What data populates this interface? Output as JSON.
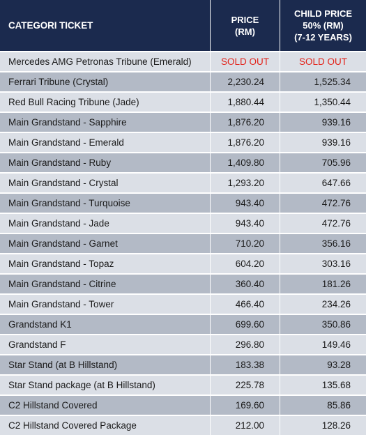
{
  "header": {
    "category": "CATEGORI TICKET",
    "price": "PRICE\n(RM)",
    "child_price": "CHILD PRICE\n50% (RM)\n(7-12 YEARS)"
  },
  "rows": [
    {
      "name": "Mercedes AMG Petronas Tribune (Emerald)",
      "price": "SOLD OUT",
      "child": "SOLD OUT",
      "sold_out": true
    },
    {
      "name": "Ferrari Tribune (Crystal)",
      "price": "2,230.24",
      "child": "1,525.34"
    },
    {
      "name": "Red Bull Racing Tribune (Jade)",
      "price": "1,880.44",
      "child": "1,350.44"
    },
    {
      "name": "Main Grandstand - Sapphire",
      "price": "1,876.20",
      "child": "939.16"
    },
    {
      "name": "Main Grandstand - Emerald",
      "price": "1,876.20",
      "child": "939.16"
    },
    {
      "name": "Main Grandstand - Ruby",
      "price": "1,409.80",
      "child": "705.96"
    },
    {
      "name": "Main Grandstand - Crystal",
      "price": "1,293.20",
      "child": "647.66"
    },
    {
      "name": "Main Grandstand - Turquoise",
      "price": "943.40",
      "child": "472.76"
    },
    {
      "name": "Main Grandstand - Jade",
      "price": "943.40",
      "child": "472.76"
    },
    {
      "name": "Main Grandstand - Garnet",
      "price": "710.20",
      "child": "356.16"
    },
    {
      "name": "Main Grandstand - Topaz",
      "price": "604.20",
      "child": "303.16"
    },
    {
      "name": "Main Grandstand - Citrine",
      "price": "360.40",
      "child": "181.26"
    },
    {
      "name": "Main Grandstand - Tower",
      "price": "466.40",
      "child": "234.26"
    },
    {
      "name": "Grandstand K1",
      "price": "699.60",
      "child": "350.86"
    },
    {
      "name": "Grandstand F",
      "price": "296.80",
      "child": "149.46"
    },
    {
      "name": "Star Stand (at B Hillstand)",
      "price": "183.38",
      "child": "93.28"
    },
    {
      "name": "Star Stand package (at B Hillstand)",
      "price": "225.78",
      "child": "135.68"
    },
    {
      "name": "C2 Hillstand Covered",
      "price": "169.60",
      "child": "85.86"
    },
    {
      "name": "C2 Hillstand Covered Package",
      "price": "212.00",
      "child": "128.26"
    }
  ],
  "colors": {
    "header_bg": "#1b2a4e",
    "row_light": "#dbdfe6",
    "row_dark": "#b3bac6",
    "sold_out": "#e2231a"
  }
}
